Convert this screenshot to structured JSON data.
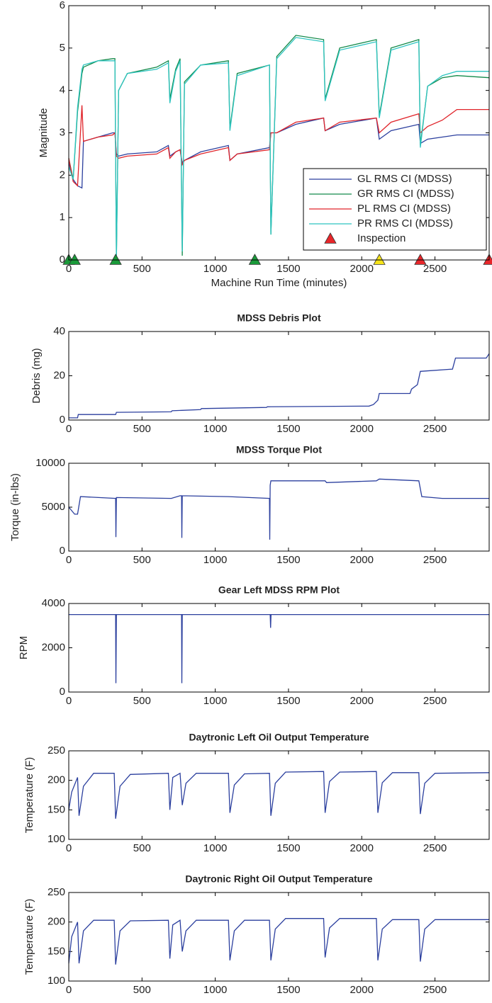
{
  "chart_data": [
    {
      "type": "line",
      "xlabel": "Machine Run Time (minutes)",
      "ylabel": "Magnitude",
      "x": [
        0,
        30,
        60,
        90,
        100,
        200,
        300,
        315,
        325,
        340,
        400,
        600,
        680,
        690,
        730,
        760,
        775,
        790,
        900,
        1090,
        1100,
        1150,
        1370,
        1380,
        1420,
        1550,
        1740,
        1750,
        1850,
        2100,
        2120,
        2200,
        2390,
        2400,
        2450,
        2550,
        2650,
        2870
      ],
      "series": [
        {
          "name": "GL RMS CI (MDSS)",
          "color": "#2b3f9e",
          "values": [
            2.3,
            1.9,
            1.75,
            1.7,
            2.8,
            2.9,
            3.0,
            3.0,
            2.5,
            2.45,
            2.5,
            2.55,
            2.7,
            2.45,
            2.55,
            2.6,
            2.3,
            2.35,
            2.55,
            2.7,
            2.35,
            2.5,
            2.65,
            3.0,
            3.0,
            3.2,
            3.35,
            3.05,
            3.2,
            3.35,
            2.85,
            3.05,
            3.2,
            2.75,
            2.85,
            2.9,
            2.95,
            2.95
          ]
        },
        {
          "name": "GR RMS CI (MDSS)",
          "color": "#138a4a",
          "values": [
            2.4,
            1.9,
            3.5,
            4.4,
            4.55,
            4.7,
            4.75,
            4.75,
            0.0,
            4.0,
            4.4,
            4.55,
            4.7,
            3.8,
            4.5,
            4.75,
            0.1,
            4.2,
            4.6,
            4.7,
            3.1,
            4.4,
            4.6,
            0.6,
            4.8,
            5.3,
            5.2,
            3.8,
            5.0,
            5.2,
            3.4,
            5.0,
            5.2,
            2.7,
            4.1,
            4.3,
            4.35,
            4.3
          ]
        },
        {
          "name": "PL RMS CI (MDSS)",
          "color": "#e0242a",
          "values": [
            2.4,
            1.85,
            1.75,
            3.65,
            2.8,
            2.9,
            2.95,
            3.0,
            2.45,
            2.4,
            2.45,
            2.5,
            2.65,
            2.4,
            2.55,
            2.6,
            2.25,
            2.35,
            2.5,
            2.65,
            2.35,
            2.5,
            2.6,
            3.0,
            3.0,
            3.25,
            3.35,
            3.05,
            3.25,
            3.35,
            3.0,
            3.25,
            3.45,
            3.0,
            3.15,
            3.3,
            3.55,
            3.55
          ]
        },
        {
          "name": "PR RMS CI (MDSS)",
          "color": "#2ec4c0",
          "values": [
            2.2,
            1.9,
            3.6,
            4.5,
            4.6,
            4.7,
            4.7,
            4.7,
            0.0,
            4.0,
            4.4,
            4.5,
            4.65,
            3.7,
            4.45,
            4.7,
            0.2,
            4.15,
            4.6,
            4.65,
            3.05,
            4.35,
            4.6,
            0.6,
            4.75,
            5.25,
            5.15,
            3.75,
            4.95,
            5.15,
            3.35,
            4.95,
            5.15,
            2.65,
            4.1,
            4.35,
            4.45,
            4.45
          ]
        },
        {
          "name": "Inspection",
          "type": "scatter",
          "marker": "triangle",
          "color": "#e8262a",
          "x": [
            0,
            40,
            320,
            1270,
            2120,
            2400,
            2870
          ],
          "values": [
            0,
            0,
            0,
            0,
            0,
            0,
            0
          ],
          "colors": [
            "#1a9a3a",
            "#1a9a3a",
            "#1a9a3a",
            "#1a9a3a",
            "#f5e31a",
            "#e8262a",
            "#e8262a"
          ]
        }
      ],
      "xlim": [
        0,
        2870
      ],
      "xticks": [
        0,
        500,
        1000,
        1500,
        2000,
        2500
      ],
      "ylim": [
        0,
        6
      ],
      "yticks": [
        0,
        1,
        2,
        3,
        4,
        5,
        6
      ],
      "legend": "lower right"
    },
    {
      "type": "line",
      "title": "MDSS Debris Plot",
      "ylabel": "Debris (mg)",
      "x": [
        0,
        60,
        65,
        320,
        325,
        700,
        705,
        900,
        905,
        1350,
        1355,
        2050,
        2080,
        2110,
        2120,
        2330,
        2340,
        2380,
        2400,
        2620,
        2640,
        2850,
        2870
      ],
      "series": [
        {
          "color": "#2b3f9e",
          "values": [
            1,
            1,
            2.5,
            2.5,
            3.5,
            3.7,
            4.2,
            4.7,
            5.2,
            5.7,
            6.0,
            6.3,
            7,
            9,
            12,
            12,
            14,
            16,
            22,
            23,
            28,
            28,
            30
          ]
        }
      ],
      "xlim": [
        0,
        2870
      ],
      "xticks": [
        0,
        500,
        1000,
        1500,
        2000,
        2500
      ],
      "ylim": [
        0,
        40
      ],
      "yticks": [
        0,
        20,
        40
      ]
    },
    {
      "type": "line",
      "title": "MDSS Torque Plot",
      "ylabel": "Torque (in-lbs)",
      "x": [
        0,
        40,
        60,
        80,
        320,
        322,
        325,
        700,
        760,
        770,
        772,
        775,
        1090,
        1370,
        1372,
        1375,
        1380,
        1390,
        1750,
        1760,
        2100,
        2120,
        2390,
        2410,
        2550,
        2870
      ],
      "series": [
        {
          "color": "#2b3f9e",
          "values": [
            5000,
            4200,
            4200,
            6200,
            6000,
            1600,
            6100,
            6000,
            6300,
            6300,
            1500,
            6300,
            6200,
            6000,
            1300,
            7500,
            8000,
            8000,
            8000,
            7800,
            8000,
            8200,
            8000,
            6200,
            6000,
            6000
          ]
        }
      ],
      "xlim": [
        0,
        2870
      ],
      "xticks": [
        0,
        500,
        1000,
        1500,
        2000,
        2500
      ],
      "ylim": [
        0,
        10000
      ],
      "yticks": [
        0,
        5000,
        10000
      ]
    },
    {
      "type": "line",
      "title": "Gear Left MDSS RPM Plot",
      "ylabel": "RPM",
      "x": [
        0,
        320,
        322,
        325,
        770,
        772,
        775,
        1375,
        1378,
        1381,
        2870
      ],
      "series": [
        {
          "color": "#2b3f9e",
          "values": [
            3500,
            3500,
            400,
            3500,
            3500,
            400,
            3500,
            3500,
            2900,
            3500,
            3500
          ]
        }
      ],
      "xlim": [
        0,
        2870
      ],
      "xticks": [
        0,
        500,
        1000,
        1500,
        2000,
        2500
      ],
      "ylim": [
        0,
        4000
      ],
      "yticks": [
        0,
        2000,
        4000
      ]
    },
    {
      "type": "line",
      "title": "Daytronic Left Oil Output Temperature",
      "ylabel": "Temperature (F)",
      "x": [
        0,
        20,
        60,
        70,
        100,
        170,
        310,
        320,
        350,
        420,
        680,
        690,
        710,
        760,
        775,
        800,
        870,
        1090,
        1100,
        1130,
        1200,
        1370,
        1380,
        1410,
        1480,
        1740,
        1750,
        1780,
        1850,
        2100,
        2110,
        2140,
        2210,
        2390,
        2400,
        2430,
        2500,
        2870
      ],
      "series": [
        {
          "color": "#2b3f9e",
          "values": [
            150,
            180,
            205,
            140,
            190,
            212,
            212,
            135,
            190,
            210,
            212,
            150,
            205,
            212,
            158,
            195,
            212,
            212,
            145,
            192,
            211,
            212,
            140,
            195,
            214,
            215,
            145,
            198,
            214,
            215,
            145,
            196,
            213,
            213,
            143,
            195,
            212,
            213
          ]
        }
      ],
      "xlim": [
        0,
        2870
      ],
      "xticks": [
        0,
        500,
        1000,
        1500,
        2000,
        2500
      ],
      "ylim": [
        100,
        250
      ],
      "yticks": [
        100,
        150,
        200,
        250
      ]
    },
    {
      "type": "line",
      "title": "Daytronic Right Oil Output Temperature",
      "ylabel": "Temperature (F)",
      "x": [
        0,
        20,
        60,
        70,
        100,
        170,
        310,
        320,
        350,
        420,
        680,
        690,
        710,
        760,
        775,
        800,
        870,
        1090,
        1100,
        1130,
        1200,
        1370,
        1380,
        1410,
        1480,
        1740,
        1750,
        1780,
        1850,
        2100,
        2110,
        2140,
        2210,
        2390,
        2400,
        2430,
        2500,
        2870
      ],
      "series": [
        {
          "color": "#2b3f9e",
          "values": [
            130,
            175,
            200,
            130,
            185,
            203,
            203,
            128,
            185,
            202,
            203,
            138,
            195,
            203,
            150,
            185,
            203,
            203,
            135,
            185,
            203,
            203,
            135,
            188,
            206,
            206,
            140,
            190,
            206,
            206,
            135,
            188,
            204,
            204,
            133,
            188,
            204,
            204
          ]
        }
      ],
      "xlim": [
        0,
        2870
      ],
      "xticks": [
        0,
        500,
        1000,
        1500,
        2000,
        2500
      ],
      "ylim": [
        100,
        250
      ],
      "yticks": [
        100,
        150,
        200,
        250
      ]
    }
  ]
}
